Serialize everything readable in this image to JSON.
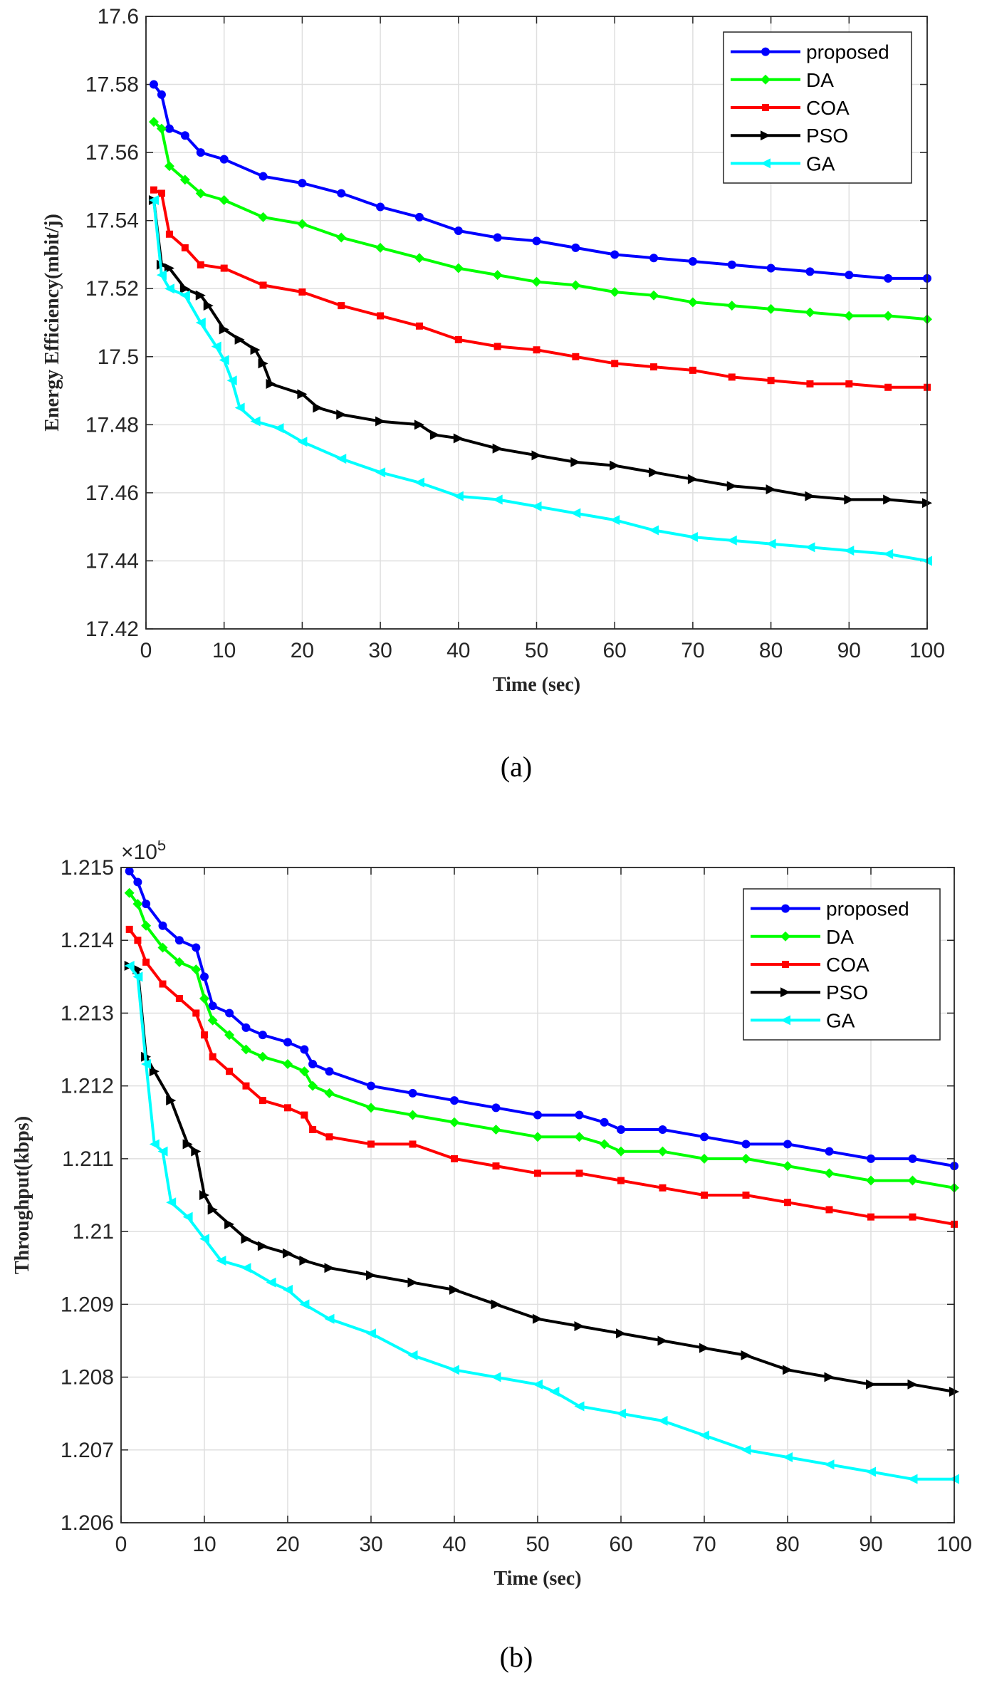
{
  "chart_data": [
    {
      "type": "line",
      "caption": "(a)",
      "xlabel": "Time (sec)",
      "ylabel": "Energy Efficiency(mbit/j)",
      "xlim": [
        0,
        100
      ],
      "ylim": [
        17.42,
        17.6
      ],
      "xticks": [
        "0",
        "10",
        "20",
        "30",
        "40",
        "50",
        "60",
        "70",
        "80",
        "90",
        "100"
      ],
      "yticks": [
        "17.42",
        "17.44",
        "17.46",
        "17.48",
        "17.5",
        "17.52",
        "17.54",
        "17.56",
        "17.58",
        "17.6"
      ],
      "exponent_label": "",
      "grid": true,
      "legend_position": "top-right",
      "series": [
        {
          "name": "proposed",
          "color": "#0000ff",
          "marker": "circle",
          "x": [
            1,
            2,
            3,
            5,
            7,
            10,
            15,
            20,
            25,
            30,
            35,
            40,
            45,
            50,
            55,
            60,
            65,
            70,
            75,
            80,
            85,
            90,
            95,
            100
          ],
          "y": [
            17.58,
            17.577,
            17.567,
            17.565,
            17.56,
            17.558,
            17.553,
            17.551,
            17.548,
            17.544,
            17.541,
            17.537,
            17.535,
            17.534,
            17.532,
            17.53,
            17.529,
            17.528,
            17.527,
            17.526,
            17.525,
            17.524,
            17.523,
            17.523
          ]
        },
        {
          "name": "DA",
          "color": "#00ff00",
          "marker": "diamond",
          "x": [
            1,
            2,
            3,
            5,
            7,
            10,
            15,
            20,
            25,
            30,
            35,
            40,
            45,
            50,
            55,
            60,
            65,
            70,
            75,
            80,
            85,
            90,
            95,
            100
          ],
          "y": [
            17.569,
            17.567,
            17.556,
            17.552,
            17.548,
            17.546,
            17.541,
            17.539,
            17.535,
            17.532,
            17.529,
            17.526,
            17.524,
            17.522,
            17.521,
            17.519,
            17.518,
            17.516,
            17.515,
            17.514,
            17.513,
            17.512,
            17.512,
            17.511
          ]
        },
        {
          "name": "COA",
          "color": "#ff0000",
          "marker": "square",
          "x": [
            1,
            2,
            3,
            5,
            7,
            10,
            15,
            20,
            25,
            30,
            35,
            40,
            45,
            50,
            55,
            60,
            65,
            70,
            75,
            80,
            85,
            90,
            95,
            100
          ],
          "y": [
            17.549,
            17.548,
            17.536,
            17.532,
            17.527,
            17.526,
            17.521,
            17.519,
            17.515,
            17.512,
            17.509,
            17.505,
            17.503,
            17.502,
            17.5,
            17.498,
            17.497,
            17.496,
            17.494,
            17.493,
            17.492,
            17.492,
            17.491,
            17.491
          ]
        },
        {
          "name": "PSO",
          "color": "#000000",
          "marker": "triangle-right",
          "x": [
            1,
            2,
            3,
            5,
            7,
            8,
            10,
            12,
            14,
            15,
            16,
            20,
            22,
            25,
            30,
            35,
            37,
            40,
            45,
            50,
            55,
            60,
            65,
            70,
            75,
            80,
            85,
            90,
            95,
            100
          ],
          "y": [
            17.546,
            17.527,
            17.526,
            17.52,
            17.518,
            17.515,
            17.508,
            17.505,
            17.502,
            17.498,
            17.492,
            17.489,
            17.485,
            17.483,
            17.481,
            17.48,
            17.477,
            17.476,
            17.473,
            17.471,
            17.469,
            17.468,
            17.466,
            17.464,
            17.462,
            17.461,
            17.459,
            17.458,
            17.458,
            17.457
          ]
        },
        {
          "name": "GA",
          "color": "#00ffff",
          "marker": "triangle-left",
          "x": [
            1,
            2,
            3,
            5,
            7,
            9,
            10,
            11,
            12,
            14,
            17,
            20,
            25,
            30,
            35,
            40,
            45,
            50,
            55,
            60,
            65,
            70,
            75,
            80,
            85,
            90,
            95,
            100
          ],
          "y": [
            17.546,
            17.524,
            17.52,
            17.518,
            17.51,
            17.503,
            17.499,
            17.493,
            17.485,
            17.481,
            17.479,
            17.475,
            17.47,
            17.466,
            17.463,
            17.459,
            17.458,
            17.456,
            17.454,
            17.452,
            17.449,
            17.447,
            17.446,
            17.445,
            17.444,
            17.443,
            17.442,
            17.44
          ]
        }
      ]
    },
    {
      "type": "line",
      "caption": "(b)",
      "xlabel": "Time (sec)",
      "ylabel": "Throughput(kbps)",
      "xlim": [
        0,
        100
      ],
      "ylim": [
        1.206,
        1.215
      ],
      "xticks": [
        "0",
        "10",
        "20",
        "30",
        "40",
        "50",
        "60",
        "70",
        "80",
        "90",
        "100"
      ],
      "yticks": [
        "1.206",
        "1.207",
        "1.208",
        "1.209",
        "1.21",
        "1.211",
        "1.212",
        "1.213",
        "1.214",
        "1.215"
      ],
      "exponent_label": "×10",
      "exponent_power": "5",
      "grid": true,
      "legend_position": "top-right",
      "series": [
        {
          "name": "proposed",
          "color": "#0000ff",
          "marker": "circle",
          "x": [
            1,
            2,
            3,
            5,
            7,
            9,
            10,
            11,
            13,
            15,
            17,
            20,
            22,
            23,
            25,
            30,
            35,
            40,
            45,
            50,
            55,
            58,
            60,
            65,
            70,
            75,
            80,
            85,
            90,
            95,
            100
          ],
          "y": [
            1.21495,
            1.2148,
            1.2145,
            1.2142,
            1.214,
            1.2139,
            1.2135,
            1.2131,
            1.213,
            1.2128,
            1.2127,
            1.2126,
            1.2125,
            1.2123,
            1.2122,
            1.212,
            1.2119,
            1.2118,
            1.2117,
            1.2116,
            1.2116,
            1.2115,
            1.2114,
            1.2114,
            1.2113,
            1.2112,
            1.2112,
            1.2111,
            1.211,
            1.211,
            1.2109
          ]
        },
        {
          "name": "DA",
          "color": "#00ff00",
          "marker": "diamond",
          "x": [
            1,
            2,
            3,
            5,
            7,
            9,
            10,
            11,
            13,
            15,
            17,
            20,
            22,
            23,
            25,
            30,
            35,
            40,
            45,
            50,
            55,
            58,
            60,
            65,
            70,
            75,
            80,
            85,
            90,
            95,
            100
          ],
          "y": [
            1.21465,
            1.2145,
            1.2142,
            1.2139,
            1.2137,
            1.2136,
            1.2132,
            1.2129,
            1.2127,
            1.2125,
            1.2124,
            1.2123,
            1.2122,
            1.212,
            1.2119,
            1.2117,
            1.2116,
            1.2115,
            1.2114,
            1.2113,
            1.2113,
            1.2112,
            1.2111,
            1.2111,
            1.211,
            1.211,
            1.2109,
            1.2108,
            1.2107,
            1.2107,
            1.2106
          ]
        },
        {
          "name": "COA",
          "color": "#ff0000",
          "marker": "square",
          "x": [
            1,
            2,
            3,
            5,
            7,
            9,
            10,
            11,
            13,
            15,
            17,
            20,
            22,
            23,
            25,
            30,
            35,
            40,
            45,
            50,
            55,
            60,
            65,
            70,
            75,
            80,
            85,
            90,
            95,
            100
          ],
          "y": [
            1.21415,
            1.214,
            1.2137,
            1.2134,
            1.2132,
            1.213,
            1.2127,
            1.2124,
            1.2122,
            1.212,
            1.2118,
            1.2117,
            1.2116,
            1.2114,
            1.2113,
            1.2112,
            1.2112,
            1.211,
            1.2109,
            1.2108,
            1.2108,
            1.2107,
            1.2106,
            1.2105,
            1.2105,
            1.2104,
            1.2103,
            1.2102,
            1.2102,
            1.2101
          ]
        },
        {
          "name": "PSO",
          "color": "#000000",
          "marker": "triangle-right",
          "x": [
            1,
            2,
            3,
            4,
            6,
            8,
            9,
            10,
            11,
            13,
            15,
            17,
            20,
            22,
            25,
            30,
            35,
            40,
            45,
            50,
            55,
            60,
            65,
            70,
            75,
            80,
            85,
            90,
            95,
            100
          ],
          "y": [
            1.21365,
            1.2136,
            1.2124,
            1.2122,
            1.2118,
            1.2112,
            1.2111,
            1.2105,
            1.2103,
            1.2101,
            1.2099,
            1.2098,
            1.2097,
            1.2096,
            1.2095,
            1.2094,
            1.2093,
            1.2092,
            1.209,
            1.2088,
            1.2087,
            1.2086,
            1.2085,
            1.2084,
            1.2083,
            1.2081,
            1.208,
            1.2079,
            1.2079,
            1.2078
          ]
        },
        {
          "name": "GA",
          "color": "#00ffff",
          "marker": "triangle-left",
          "x": [
            1,
            2,
            3,
            4,
            5,
            6,
            8,
            10,
            12,
            15,
            18,
            20,
            22,
            25,
            30,
            35,
            40,
            45,
            50,
            52,
            55,
            60,
            65,
            70,
            75,
            80,
            85,
            90,
            95,
            100
          ],
          "y": [
            1.21365,
            1.2135,
            1.2123,
            1.2112,
            1.2111,
            1.2104,
            1.2102,
            1.2099,
            1.2096,
            1.2095,
            1.2093,
            1.2092,
            1.209,
            1.2088,
            1.2086,
            1.2083,
            1.2081,
            1.208,
            1.2079,
            1.2078,
            1.2076,
            1.2075,
            1.2074,
            1.2072,
            1.207,
            1.2069,
            1.2068,
            1.2067,
            1.2066,
            1.2066
          ]
        }
      ]
    }
  ]
}
